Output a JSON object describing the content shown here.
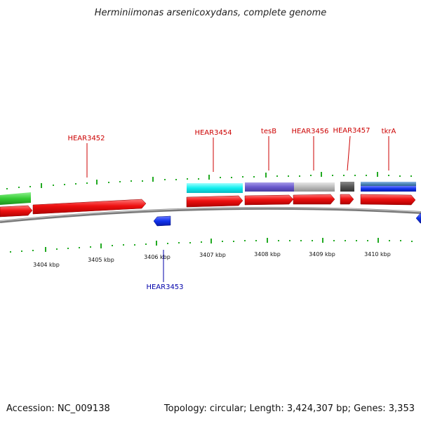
{
  "title": "Herminiimonas arsenicoxydans, complete genome",
  "footer": {
    "accession": "Accession: NC_009138",
    "summary": "Topology: circular; Length: 3,424,307 bp; Genes: 3,353"
  },
  "scale": {
    "unit": "kbp",
    "tick_labels": [
      "3404 kbp",
      "3405 kbp",
      "3406 kbp",
      "3407 kbp",
      "3408 kbp",
      "3409 kbp",
      "3410 kbp"
    ]
  },
  "gene_labels": {
    "HEAR3452": "HEAR3452",
    "HEAR3453": "HEAR3453",
    "HEAR3454": "HEAR3454",
    "tesB": "tesB",
    "HEAR3456": "HEAR3456",
    "HEAR3457": "HEAR3457",
    "tkrA": "tkrA"
  },
  "colors": {
    "gene_forward": "#ee1111",
    "gene_reverse": "#1133ee",
    "backbone": "#8a8a8a",
    "ticks": "#22aa22",
    "label_forward": "#cc0000",
    "label_reverse": "#0000aa"
  }
}
